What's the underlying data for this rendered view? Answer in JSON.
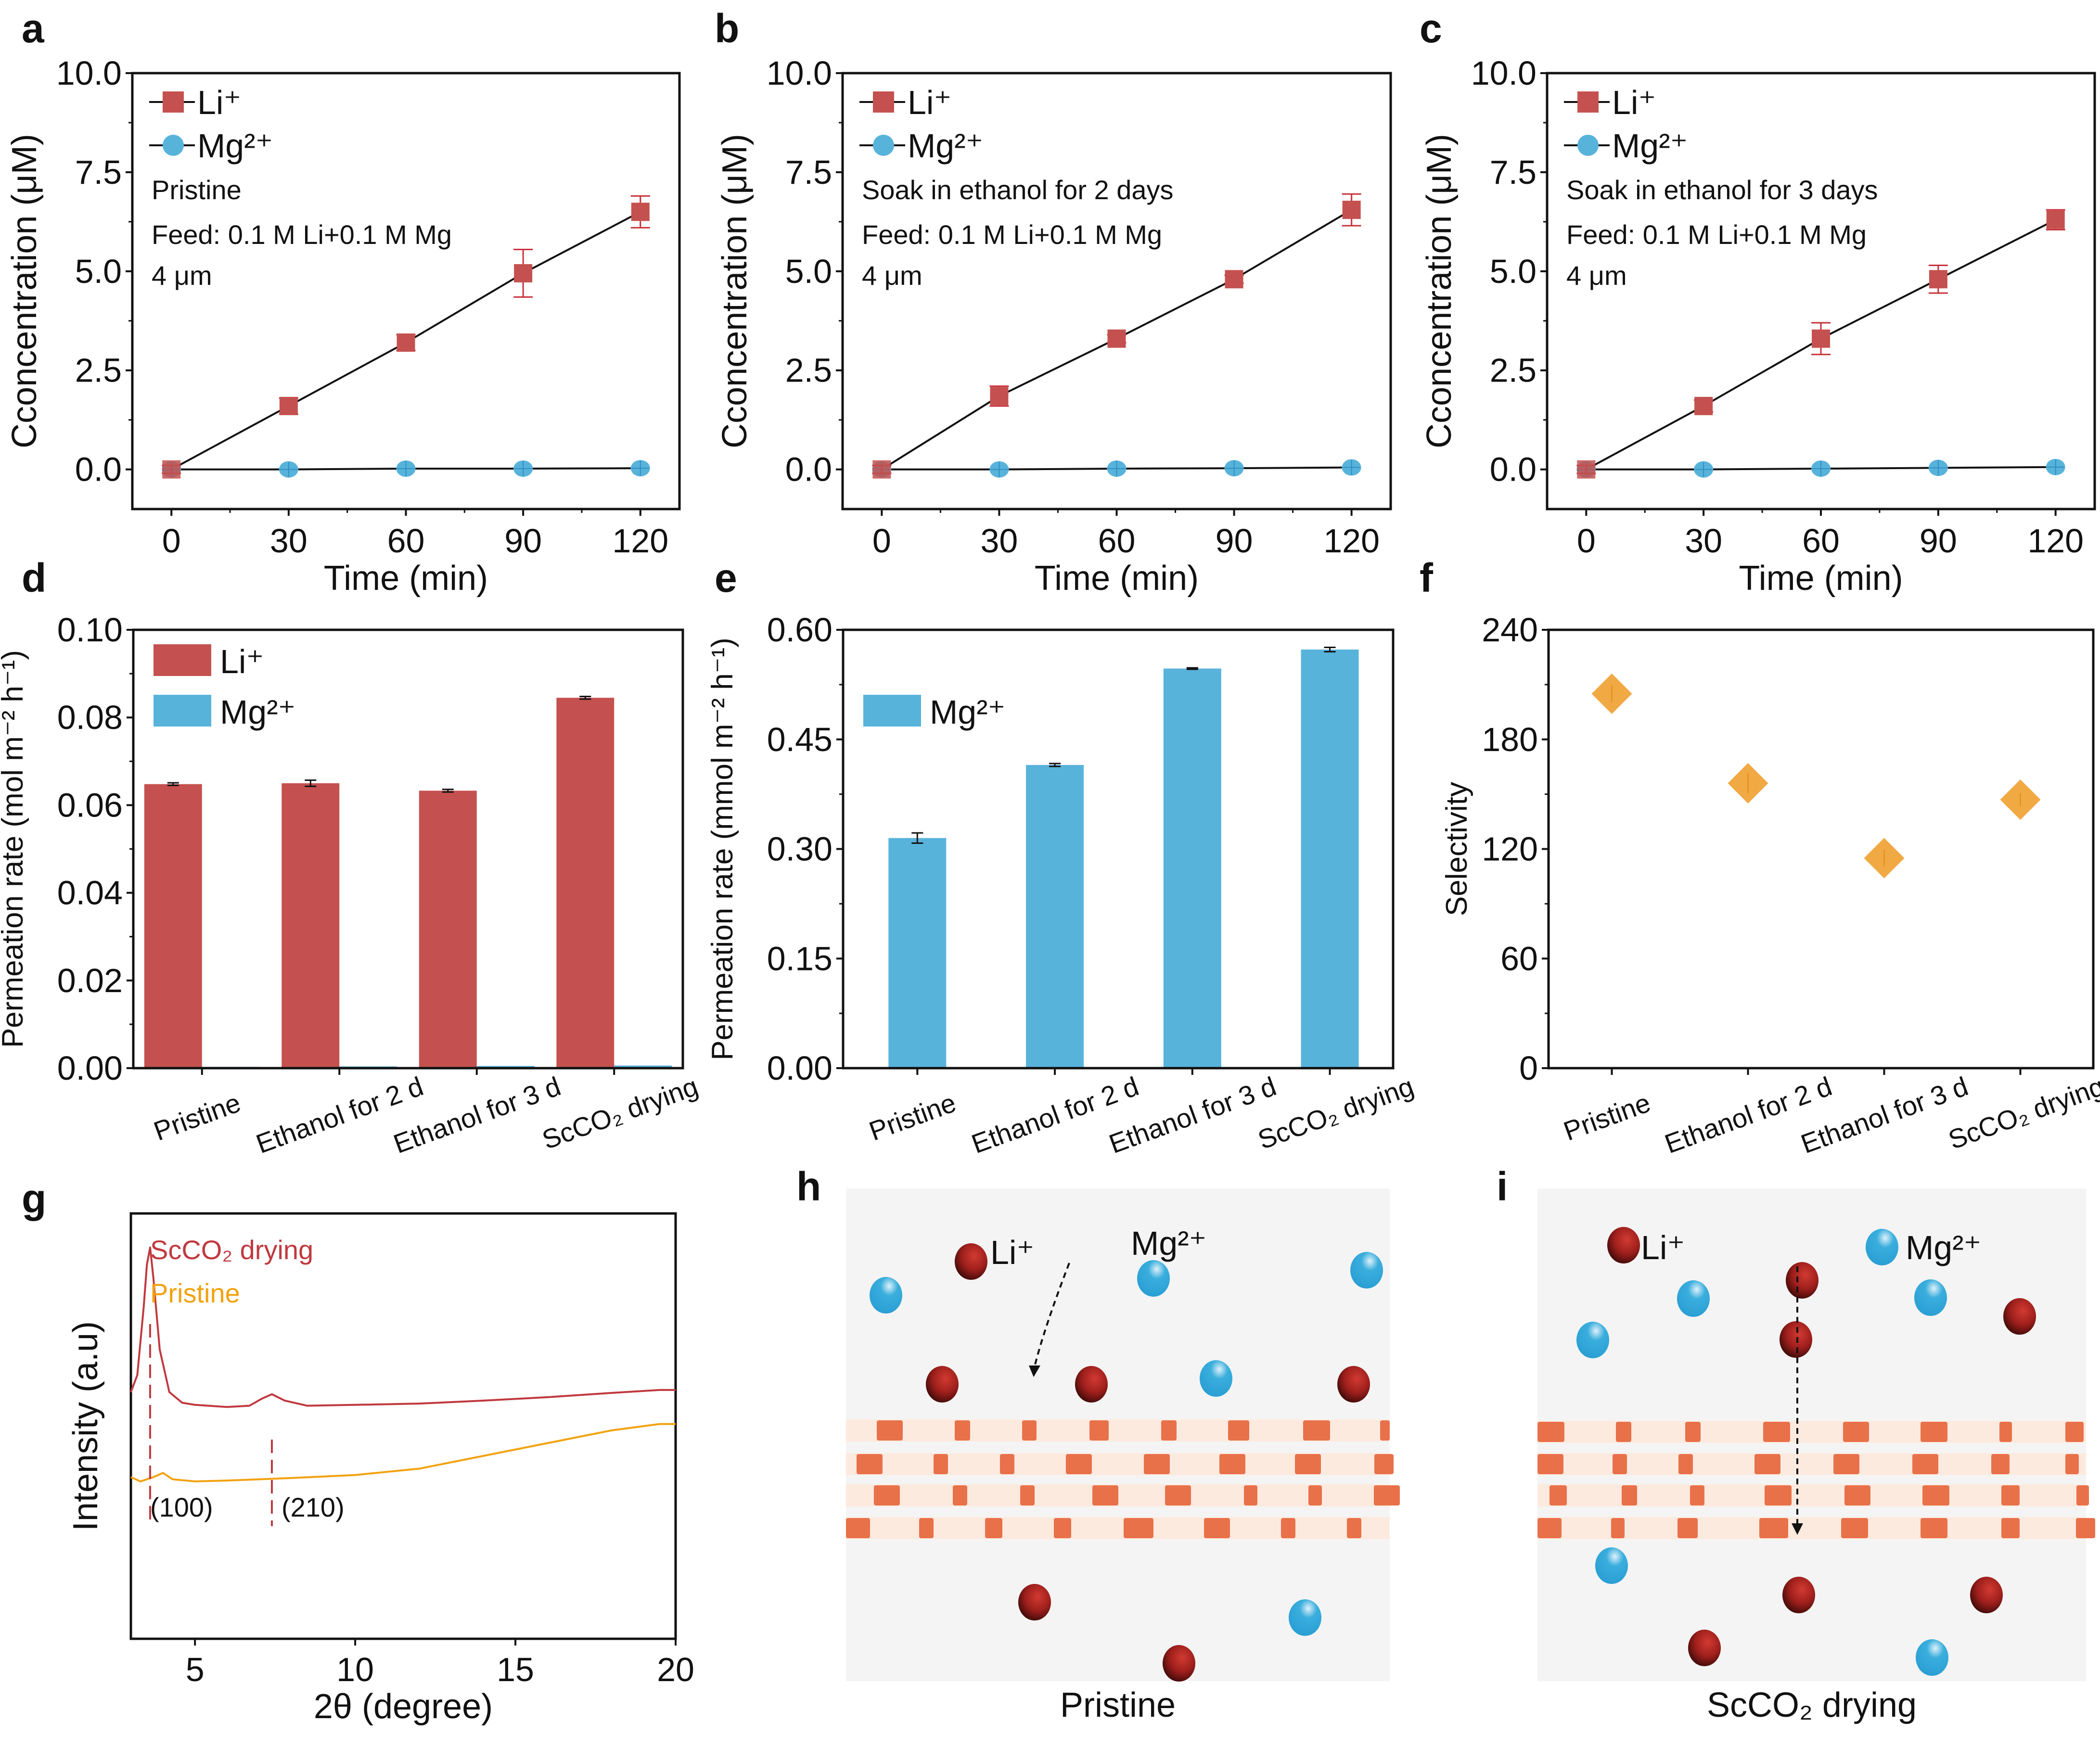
{
  "figure": {
    "colors": {
      "li": "#c4514f",
      "li_err": "#c9303a",
      "mg": "#58b3db",
      "selectivity": "#f0a030",
      "xrd_scco2": "#c0393f",
      "xrd_pristine": "#f2a20f",
      "membrane_band": "#fdeadf",
      "membrane_block": "#e8714a",
      "schematic_bg": "#f4f4f4",
      "li_ion": "#a0201f",
      "mg_ion": "#2ea4d6"
    }
  },
  "chart_data": [
    {
      "panel": "a",
      "type": "line",
      "xlabel": "Time (min)",
      "ylabel": "Cconcentration (μM)",
      "x": [
        0,
        30,
        60,
        90,
        120
      ],
      "xticks": [
        "0",
        "30",
        "60",
        "90",
        "120"
      ],
      "xlim": [
        -10,
        130
      ],
      "ylim": [
        -1.0,
        10.0
      ],
      "yticks": [
        "0.0",
        "2.5",
        "5.0",
        "7.5",
        "10.0"
      ],
      "series": [
        {
          "name": "Li⁺",
          "marker": "square",
          "values": [
            0,
            1.6,
            3.2,
            4.95,
            6.5
          ],
          "errors": [
            0.1,
            0.2,
            0.2,
            0.6,
            0.4
          ]
        },
        {
          "name": "Mg²⁺",
          "marker": "circle",
          "values": [
            0,
            0,
            0.02,
            0.02,
            0.03
          ],
          "errors": [
            0,
            0.05,
            0.05,
            0.05,
            0.05
          ]
        }
      ],
      "annotations": [
        "Pristine",
        "Feed: 0.1 M Li+0.1 M Mg",
        "4 μm"
      ],
      "legend": "top-left"
    },
    {
      "panel": "b",
      "type": "line",
      "xlabel": "Time (min)",
      "ylabel": "Cconcentration (μM)",
      "x": [
        0,
        30,
        60,
        90,
        120
      ],
      "xticks": [
        "0",
        "30",
        "60",
        "90",
        "120"
      ],
      "xlim": [
        -10,
        130
      ],
      "ylim": [
        -1.0,
        10.0
      ],
      "yticks": [
        "0.0",
        "2.5",
        "5.0",
        "7.5",
        "10.0"
      ],
      "series": [
        {
          "name": "Li⁺",
          "marker": "square",
          "values": [
            0,
            1.85,
            3.3,
            4.8,
            6.55
          ],
          "errors": [
            0.1,
            0.25,
            0.1,
            0.1,
            0.4
          ]
        },
        {
          "name": "Mg²⁺",
          "marker": "circle",
          "values": [
            0,
            0,
            0.02,
            0.03,
            0.05
          ],
          "errors": [
            0,
            0.05,
            0.05,
            0.05,
            0.05
          ]
        }
      ],
      "annotations": [
        "Soak in ethanol for 2 days",
        "Feed: 0.1 M Li+0.1 M Mg",
        "4 μm"
      ],
      "legend": "top-left"
    },
    {
      "panel": "c",
      "type": "line",
      "xlabel": "Time (min)",
      "ylabel": "Cconcentration (μM)",
      "x": [
        0,
        30,
        60,
        90,
        120
      ],
      "xticks": [
        "0",
        "30",
        "60",
        "90",
        "120"
      ],
      "xlim": [
        -10,
        130
      ],
      "ylim": [
        -1.0,
        10.0
      ],
      "yticks": [
        "0.0",
        "2.5",
        "5.0",
        "7.5",
        "10.0"
      ],
      "series": [
        {
          "name": "Li⁺",
          "marker": "square",
          "values": [
            0,
            1.6,
            3.3,
            4.8,
            6.3
          ],
          "errors": [
            0.1,
            0.15,
            0.4,
            0.35,
            0.25
          ]
        },
        {
          "name": "Mg²⁺",
          "marker": "circle",
          "values": [
            0,
            0,
            0.02,
            0.04,
            0.06
          ],
          "errors": [
            0,
            0.05,
            0.05,
            0.05,
            0.05
          ]
        }
      ],
      "annotations": [
        "Soak in ethanol for 3 days",
        "Feed: 0.1 M Li+0.1 M Mg",
        "4 μm"
      ],
      "legend": "top-left"
    },
    {
      "panel": "d",
      "type": "bar",
      "ylabel": "Permeation rate (mol m⁻² h⁻¹)",
      "categories": [
        "Pristine",
        "Ethanol for 2 d",
        "Ethanol for 3 d",
        "ScCO₂ drying"
      ],
      "ylim": [
        0,
        0.1
      ],
      "yticks": [
        "0.00",
        "0.02",
        "0.04",
        "0.06",
        "0.08",
        "0.10"
      ],
      "series": [
        {
          "name": "Li⁺",
          "values": [
            0.0648,
            0.065,
            0.0633,
            0.0845
          ],
          "errors": [
            0.0003,
            0.0007,
            0.0003,
            0.0003
          ]
        },
        {
          "name": "Mg²⁺",
          "values": [
            0.0003,
            0.0004,
            0.0005,
            0.0006
          ],
          "errors": [
            0,
            0,
            0,
            0
          ]
        }
      ],
      "legend": "top-left"
    },
    {
      "panel": "e",
      "type": "bar",
      "ylabel": "Permeation rate (mmol m⁻² h⁻¹)",
      "categories": [
        "Pristine",
        "Ethanol for 2 d",
        "Ethanol for 3 d",
        "ScCO₂ drying"
      ],
      "ylim": [
        0,
        0.6
      ],
      "yticks": [
        "0.00",
        "0.15",
        "0.30",
        "0.45",
        "0.60"
      ],
      "series": [
        {
          "name": "Mg²⁺",
          "values": [
            0.315,
            0.415,
            0.547,
            0.573
          ],
          "errors": [
            0.007,
            0.002,
            0.001,
            0.003
          ]
        }
      ],
      "legend": "top-left"
    },
    {
      "panel": "f",
      "type": "scatter",
      "ylabel": "Selectivity",
      "categories": [
        "Pristine",
        "Ethanol for 2 d",
        "Ethanol for 3 d",
        "ScCO₂ drying"
      ],
      "ylim": [
        0,
        240
      ],
      "yticks": [
        "0",
        "60",
        "120",
        "180",
        "240"
      ],
      "series": [
        {
          "name": "Selectivity",
          "marker": "diamond",
          "values": [
            205,
            156,
            115,
            147
          ],
          "errors": [
            3,
            4,
            3,
            2
          ]
        }
      ]
    },
    {
      "panel": "g",
      "type": "line",
      "xlabel": "2θ (degree)",
      "ylabel": "Intensity (a.u)",
      "xlim": [
        3,
        20
      ],
      "xticks": [
        "5",
        "10",
        "15",
        "20"
      ],
      "series": [
        {
          "name": "ScCO₂ drying",
          "x": [
            3.0,
            3.2,
            3.4,
            3.5,
            3.6,
            3.7,
            3.9,
            4.2,
            4.6,
            5.0,
            6.0,
            6.7,
            7.1,
            7.4,
            7.8,
            8.5,
            10,
            12,
            14,
            16,
            18,
            19.5,
            20
          ],
          "values": [
            0.58,
            0.62,
            0.78,
            0.88,
            0.92,
            0.85,
            0.68,
            0.58,
            0.555,
            0.55,
            0.545,
            0.548,
            0.565,
            0.575,
            0.56,
            0.548,
            0.55,
            0.553,
            0.56,
            0.568,
            0.578,
            0.585,
            0.585
          ]
        },
        {
          "name": "Pristine",
          "x": [
            3.0,
            3.3,
            3.7,
            4.0,
            4.3,
            5.0,
            6.0,
            8.0,
            10,
            12,
            14,
            16,
            18,
            19.5,
            20
          ],
          "values": [
            0.38,
            0.37,
            0.38,
            0.39,
            0.375,
            0.37,
            0.372,
            0.378,
            0.385,
            0.4,
            0.43,
            0.46,
            0.49,
            0.505,
            0.505
          ]
        }
      ],
      "peaks": [
        {
          "x": 3.6,
          "label": "(100)"
        },
        {
          "x": 7.4,
          "label": "(210)"
        }
      ],
      "legend_labels": [
        "ScCO₂ drying",
        "Pristine"
      ]
    }
  ],
  "schematics": {
    "h": {
      "letter": "h",
      "caption": "Pristine",
      "li_label": "Li⁺",
      "mg_label": "Mg²⁺"
    },
    "i": {
      "letter": "i",
      "caption": "ScCO₂ drying",
      "li_label": "Li⁺",
      "mg_label": "Mg²⁺"
    }
  },
  "panel_letters": [
    "a",
    "b",
    "c",
    "d",
    "e",
    "f",
    "g",
    "h",
    "i"
  ]
}
